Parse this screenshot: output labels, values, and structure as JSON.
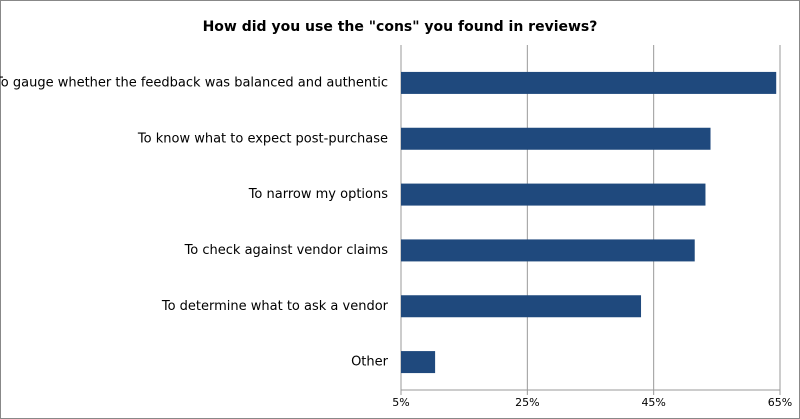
{
  "chart_data": {
    "type": "bar",
    "orientation": "horizontal",
    "title": "How did you use the \"cons\" you found in reviews?",
    "categories": [
      "To gauge whether the feedback was balanced and authentic",
      "To know what to expect post-purchase",
      "To narrow my options",
      "To check against vendor claims",
      "To determine what to ask a vendor",
      "Other"
    ],
    "values": [
      64.4,
      54,
      53.2,
      51.5,
      43,
      10.4
    ],
    "color": "#1f497d",
    "xlim": [
      5,
      65
    ],
    "xticks": [
      {
        "value": 5,
        "label": "5%"
      },
      {
        "value": 25,
        "label": "25%"
      },
      {
        "value": 45,
        "label": "45%"
      },
      {
        "value": 65,
        "label": "65%"
      }
    ],
    "grid": true
  }
}
